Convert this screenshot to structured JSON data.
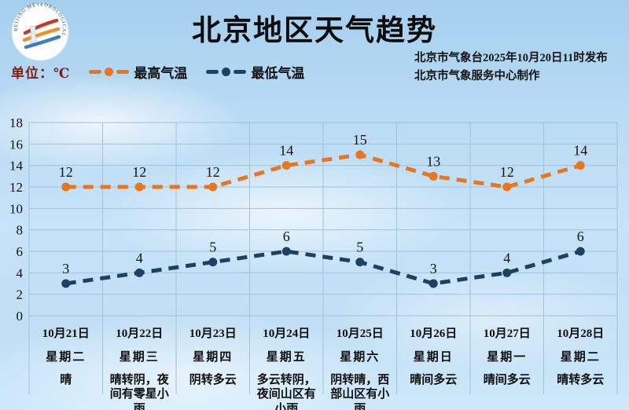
{
  "header": {
    "title": "北京地区天气趋势",
    "unit_label": "单位：℃",
    "source_line1": "北京市气象台2025年10月20日11时发布",
    "source_line2": "北京市气象服务中心制作",
    "logo_text": "BEIJING METEOROLOGICAL SERVICE 气象服务"
  },
  "chart_data": {
    "type": "line",
    "title": "北京地区天气趋势",
    "ylabel": "℃",
    "ylim": [
      0,
      18
    ],
    "ytick_step": 2,
    "grid": true,
    "legend_position": "top-left",
    "line_style": "dashed",
    "categories": [
      "10月21日",
      "10月22日",
      "10月23日",
      "10月24日",
      "10月25日",
      "10月26日",
      "10月27日",
      "10月28日"
    ],
    "weekdays": [
      "星期二",
      "星期三",
      "星期四",
      "星期五",
      "星期六",
      "星期日",
      "星期一",
      "星期二"
    ],
    "weather": [
      "晴",
      "晴转阴，夜间有零星小雨",
      "阴转多云",
      "多云转阴，夜间山区有小雨",
      "阴转晴，西部山区有小雨",
      "晴间多云",
      "晴间多云",
      "晴转多云"
    ],
    "series": [
      {
        "name": "最高气温",
        "color": "#e8761f",
        "values": [
          12,
          12,
          12,
          14,
          15,
          13,
          12,
          14
        ]
      },
      {
        "name": "最低气温",
        "color": "#1c4163",
        "values": [
          3,
          4,
          5,
          6,
          5,
          3,
          4,
          6
        ]
      }
    ],
    "colors": {
      "grid": "#a3c1d8",
      "value_label": "#111111"
    }
  }
}
